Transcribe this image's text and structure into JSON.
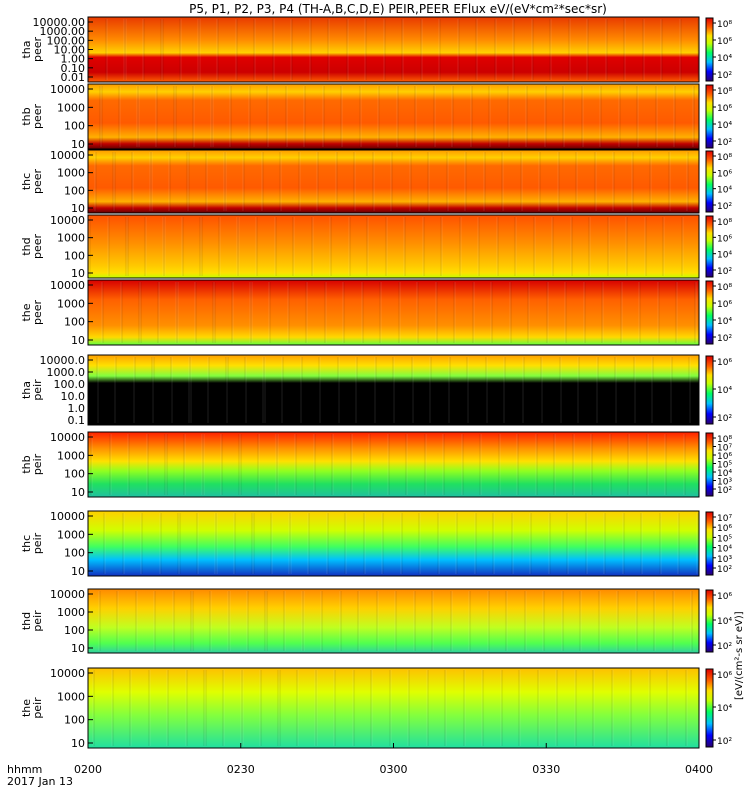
{
  "chart_data": {
    "type": "heatmap",
    "title": "P5, P1, P2, P3, P4 (TH-A,B,C,D,E) PEIR,PEER EFlux eV/(eV*cm²*sec*sr)",
    "xlabel": "hhmm",
    "date_label": "2017 Jan 13",
    "x_ticks": [
      "0200",
      "0230",
      "0300",
      "0330",
      "0400"
    ],
    "x_range": [
      "0200",
      "0400"
    ],
    "colorbar_label": "[eV/(cm²-s sr eV)]",
    "panels": [
      {
        "name": "tha peer",
        "probe": "tha",
        "species": "peer",
        "y_ticks": [
          "10000.00",
          "1000.00",
          "100.00",
          "10.00",
          "1.00",
          "0.10",
          "0.01"
        ],
        "cbar_ticks": [
          "10⁸",
          "10⁶",
          "10⁴",
          "10²"
        ]
      },
      {
        "name": "thb peer",
        "probe": "thb",
        "species": "peer",
        "y_ticks": [
          "10000",
          "1000",
          "100",
          "10"
        ],
        "cbar_ticks": [
          "10⁸",
          "10⁶",
          "10⁴",
          "10²"
        ]
      },
      {
        "name": "thc peer",
        "probe": "thc",
        "species": "peer",
        "y_ticks": [
          "10000",
          "1000",
          "100",
          "10"
        ],
        "cbar_ticks": [
          "10⁸",
          "10⁶",
          "10⁴",
          "10²"
        ]
      },
      {
        "name": "thd peer",
        "probe": "thd",
        "species": "peer",
        "y_ticks": [
          "10000",
          "1000",
          "100",
          "10"
        ],
        "cbar_ticks": [
          "10⁸",
          "10⁶",
          "10⁴",
          "10²"
        ]
      },
      {
        "name": "the peer",
        "probe": "the",
        "species": "peer",
        "y_ticks": [
          "10000",
          "1000",
          "100",
          "10"
        ],
        "cbar_ticks": [
          "10⁸",
          "10⁶",
          "10⁴",
          "10²"
        ]
      },
      {
        "name": "tha peir",
        "probe": "tha",
        "species": "peir",
        "y_ticks": [
          "10000.0",
          "1000.0",
          "100.0",
          "10.0",
          "1.0",
          "0.1"
        ],
        "cbar_ticks": [
          "10⁶",
          "10⁴",
          "10²"
        ]
      },
      {
        "name": "thb peir",
        "probe": "thb",
        "species": "peir",
        "y_ticks": [
          "10000",
          "1000",
          "100",
          "10"
        ],
        "cbar_ticks": [
          "10⁸",
          "10⁷",
          "10⁶",
          "10⁵",
          "10⁴",
          "10³",
          "10²"
        ]
      },
      {
        "name": "thc peir",
        "probe": "thc",
        "species": "peir",
        "y_ticks": [
          "10000",
          "1000",
          "100",
          "10"
        ],
        "cbar_ticks": [
          "10⁷",
          "10⁶",
          "10⁵",
          "10⁴",
          "10³",
          "10²"
        ]
      },
      {
        "name": "thd peir",
        "probe": "thd",
        "species": "peir",
        "y_ticks": [
          "10000",
          "1000",
          "100",
          "10"
        ],
        "cbar_ticks": [
          "10⁶",
          "10⁴",
          "10²"
        ]
      },
      {
        "name": "the peir",
        "probe": "the",
        "species": "peir",
        "y_ticks": [
          "10000",
          "1000",
          "100",
          "10"
        ],
        "cbar_ticks": [
          "10⁶",
          "10⁴",
          "10²"
        ]
      }
    ]
  }
}
